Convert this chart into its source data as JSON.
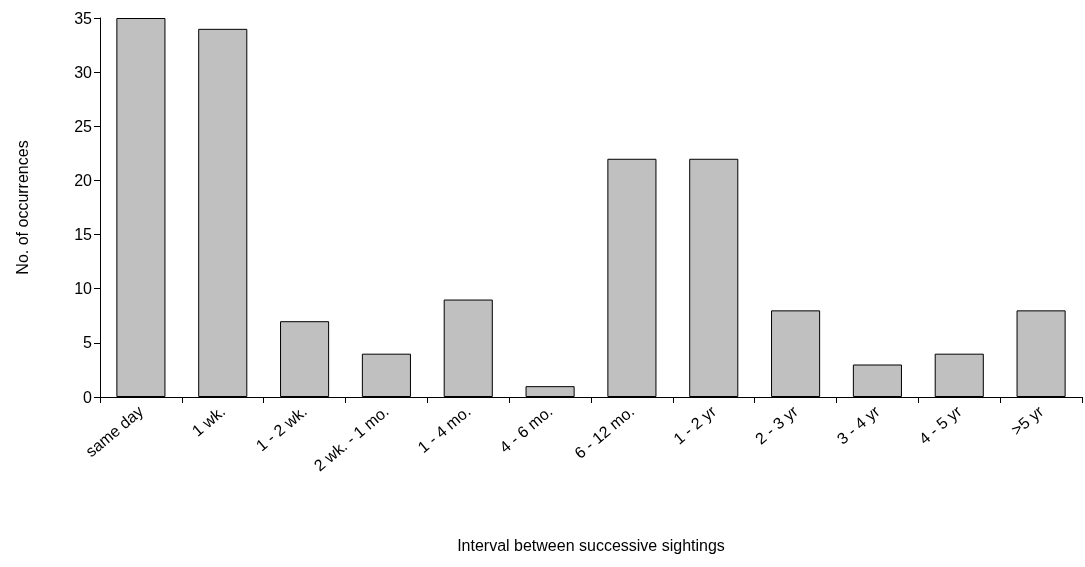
{
  "chart_data": {
    "type": "bar",
    "xlabel": "Interval between successive sightings",
    "ylabel": "No. of occurrences",
    "categories": [
      "same day",
      "1 wk.",
      "1 - 2 wk.",
      "2 wk. - 1 mo.",
      "1 - 4 mo.",
      "4 - 6 mo.",
      "6 - 12 mo.",
      "1 - 2 yr",
      "2 - 3 yr",
      "3 - 4 yr",
      "4 - 5 yr",
      ">5 yr"
    ],
    "values": [
      35,
      34,
      7,
      4,
      9,
      1,
      22,
      22,
      8,
      3,
      4,
      8
    ],
    "color": "#c0c0c0",
    "ylim": [
      0,
      35
    ],
    "yticks": [
      0,
      5,
      10,
      15,
      20,
      25,
      30,
      35
    ],
    "grid": false
  }
}
